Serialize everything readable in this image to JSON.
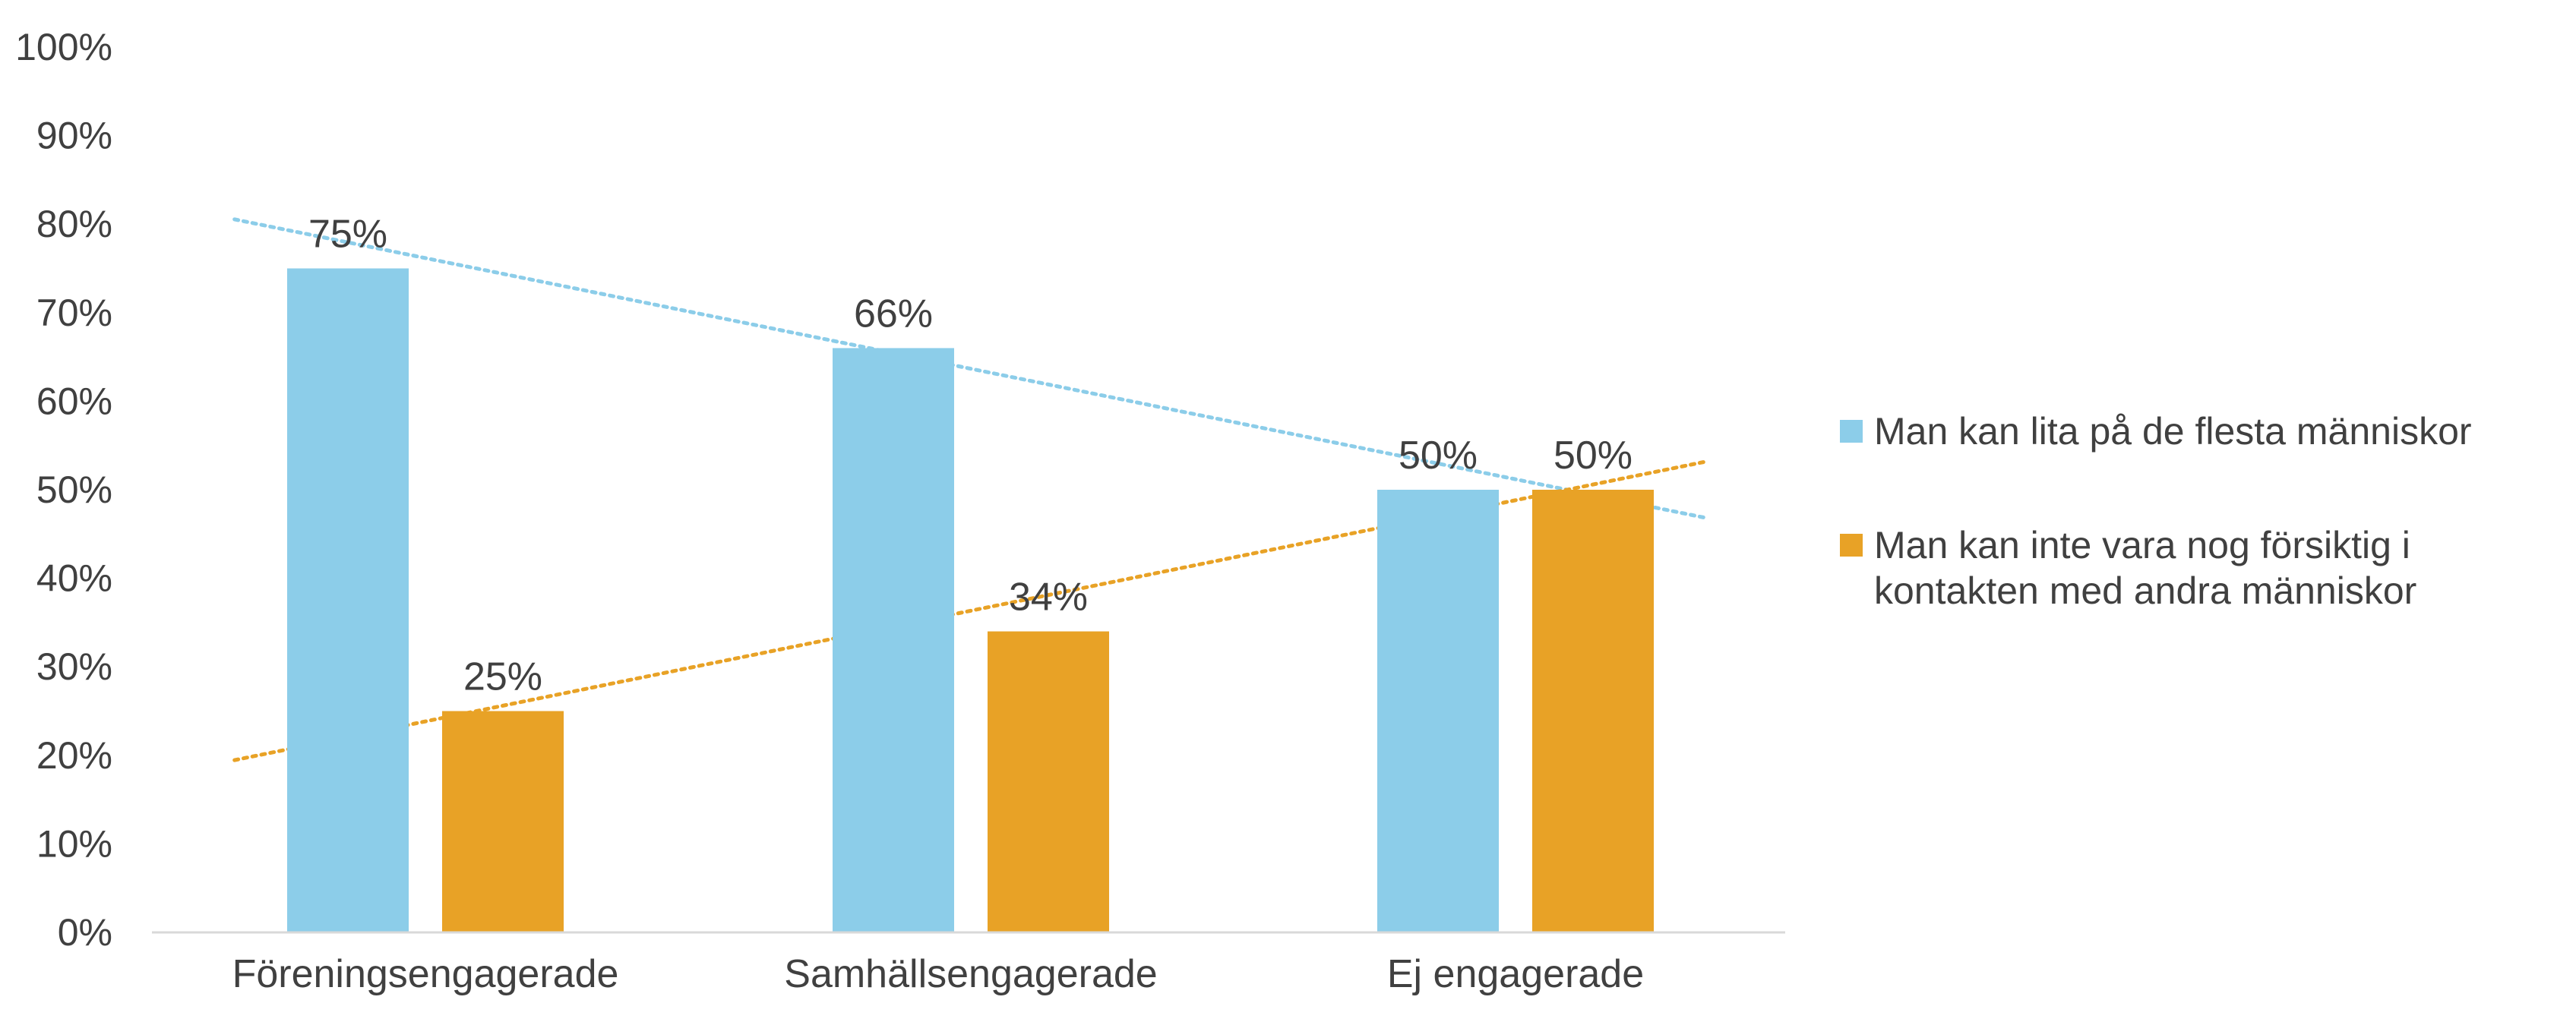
{
  "chart_data": {
    "type": "bar",
    "title": "",
    "xlabel": "",
    "ylabel": "",
    "ylim": [
      0,
      100
    ],
    "ytick_values": [
      0,
      10,
      20,
      30,
      40,
      50,
      60,
      70,
      80,
      90,
      100
    ],
    "ytick_labels": [
      "0%",
      "10%",
      "20%",
      "30%",
      "40%",
      "50%",
      "60%",
      "70%",
      "80%",
      "90%",
      "100%"
    ],
    "categories": [
      "Föreningsengagerade",
      "Samhällsengagerade",
      "Ej engagerade"
    ],
    "series": [
      {
        "name": "Man kan lita på de flesta människor",
        "name_lines": [
          "Man kan lita på de flesta människor"
        ],
        "values": [
          75,
          66,
          50
        ],
        "labels": [
          "75%",
          "66%",
          "50%"
        ],
        "color": "#8ccde9",
        "trendline": true
      },
      {
        "name": "Man kan inte vara nog försiktig i kontakten med andra människor",
        "name_lines": [
          "Man kan inte vara nog försiktig i",
          "kontakten med andra människor"
        ],
        "values": [
          25,
          34,
          50
        ],
        "labels": [
          "25%",
          "34%",
          "50%"
        ],
        "color": "#e8a226",
        "trendline": true
      }
    ],
    "grid": false,
    "legend": "right",
    "trendline_style": "dotted linear"
  }
}
